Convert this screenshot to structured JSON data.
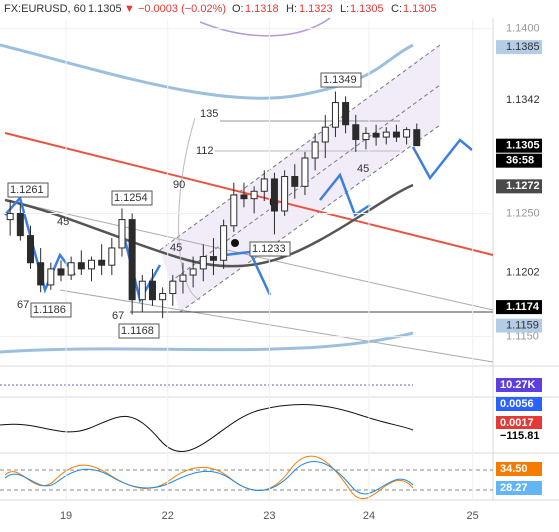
{
  "header": {
    "symbol": "FX:EURUSD, 60",
    "last": "1.1305",
    "change": "▼ −0.0003 (−0.02%)",
    "o_label": "O:",
    "o": "1.1318",
    "h_label": "H:",
    "h": "1.1323",
    "l_label": "L:",
    "l": "1.1305",
    "c_label": "C:",
    "c": "1.1305"
  },
  "chart_data": {
    "type": "candlestick",
    "color": "#2b2b2b",
    "x": [
      -5,
      -4,
      -3,
      -2,
      -1,
      0,
      1,
      2,
      3,
      4,
      5,
      6,
      7,
      8,
      9,
      10,
      11,
      12,
      13,
      14,
      15,
      16,
      17,
      18,
      19,
      20,
      21,
      22,
      23,
      24,
      25,
      26,
      27,
      28,
      29,
      30,
      31,
      32,
      33,
      34,
      35
    ],
    "open": [
      1.1245,
      1.125,
      1.1232,
      1.121,
      1.1192,
      1.1205,
      1.12,
      1.121,
      1.1205,
      1.1212,
      1.1208,
      1.1222,
      1.1245,
      1.118,
      1.1195,
      1.118,
      1.1185,
      1.1195,
      1.12,
      1.1205,
      1.1215,
      1.1212,
      1.124,
      1.1265,
      1.1262,
      1.1268,
      1.1278,
      1.1252,
      1.128,
      1.1272,
      1.1295,
      1.1308,
      1.132,
      1.134,
      1.1322,
      1.131,
      1.1315,
      1.1312,
      1.1316,
      1.1312,
      1.1318
    ],
    "high": [
      1.1261,
      1.1258,
      1.124,
      1.1222,
      1.121,
      1.1212,
      1.1215,
      1.122,
      1.1215,
      1.1225,
      1.123,
      1.1254,
      1.125,
      1.12,
      1.1205,
      1.119,
      1.12,
      1.121,
      1.1215,
      1.1225,
      1.123,
      1.1245,
      1.1275,
      1.1275,
      1.1272,
      1.1285,
      1.1283,
      1.1285,
      1.129,
      1.13,
      1.1315,
      1.133,
      1.1349,
      1.1345,
      1.133,
      1.132,
      1.1322,
      1.132,
      1.1322,
      1.132,
      1.1323
    ],
    "low": [
      1.1232,
      1.1228,
      1.1205,
      1.1186,
      1.1188,
      1.1195,
      1.1196,
      1.12,
      1.1195,
      1.12,
      1.12,
      1.1215,
      1.1168,
      1.117,
      1.1175,
      1.1165,
      1.1175,
      1.1185,
      1.119,
      1.1195,
      1.12,
      1.1205,
      1.1235,
      1.1255,
      1.125,
      1.126,
      1.1233,
      1.1248,
      1.1262,
      1.1265,
      1.1285,
      1.1295,
      1.1312,
      1.1315,
      1.13,
      1.1302,
      1.1305,
      1.1306,
      1.1308,
      1.1306,
      1.1305
    ],
    "close": [
      1.125,
      1.1232,
      1.121,
      1.1192,
      1.1205,
      1.12,
      1.121,
      1.1205,
      1.1212,
      1.1208,
      1.1222,
      1.1245,
      1.118,
      1.1195,
      1.118,
      1.1185,
      1.1195,
      1.12,
      1.1205,
      1.1215,
      1.1212,
      1.124,
      1.1265,
      1.1262,
      1.1268,
      1.1278,
      1.1252,
      1.128,
      1.1272,
      1.1295,
      1.1308,
      1.132,
      1.134,
      1.1322,
      1.131,
      1.1315,
      1.1312,
      1.1316,
      1.1312,
      1.1318,
      1.1305
    ],
    "xlim": [
      -6,
      42.5
    ],
    "xticks": [
      {
        "value": 0.5,
        "label": "19"
      },
      {
        "value": 10.5,
        "label": "22"
      },
      {
        "value": 20.5,
        "label": "23"
      },
      {
        "value": 30.3,
        "label": "24"
      },
      {
        "value": 40.5,
        "label": "25"
      }
    ],
    "ylim": [
      1.1127,
      1.1407
    ],
    "yticks": [
      {
        "value": 1.14,
        "label": "1.1400"
      },
      {
        "value": 1.125,
        "label": "1.1250"
      },
      {
        "value": 1.115,
        "label": "1.1150"
      }
    ],
    "annotations": [
      "1.1261",
      "1.1254",
      "1.1186",
      "1.1168",
      "1.1233",
      "1.1349",
      "135",
      "112",
      "90",
      "45",
      "45",
      "67",
      "67",
      "45"
    ],
    "price_badges": [
      {
        "value": 1.1385,
        "label": "1.1385",
        "color": "#b3cde6"
      },
      {
        "value": 1.1342,
        "label": "1.1342",
        "color": "#ffffff"
      },
      {
        "value": 1.1305,
        "label": "1.1305",
        "color": "#000000"
      },
      {
        "value": 1.1272,
        "label": "1.1272",
        "color": "#4a4a4a"
      },
      {
        "value": 1.1202,
        "label": "1.1202",
        "color": "#ffffff"
      },
      {
        "value": 1.1174,
        "label": "1.1174",
        "color": "#000000"
      },
      {
        "value": 1.1159,
        "label": "1.1159",
        "color": "#b3cde6"
      }
    ],
    "countdown": "36:58",
    "indicator_badges": [
      {
        "label": "10.27K",
        "color": "#5c3fe0"
      },
      {
        "label": "0.0056",
        "color": "#2962ff"
      },
      {
        "label": "0.0017",
        "color": "#e53935"
      },
      {
        "label": "−115.81",
        "color": "#ffffff"
      },
      {
        "label": "34.50",
        "color": "#f57c00"
      },
      {
        "label": "28.27",
        "color": "#64b5f6"
      }
    ]
  }
}
